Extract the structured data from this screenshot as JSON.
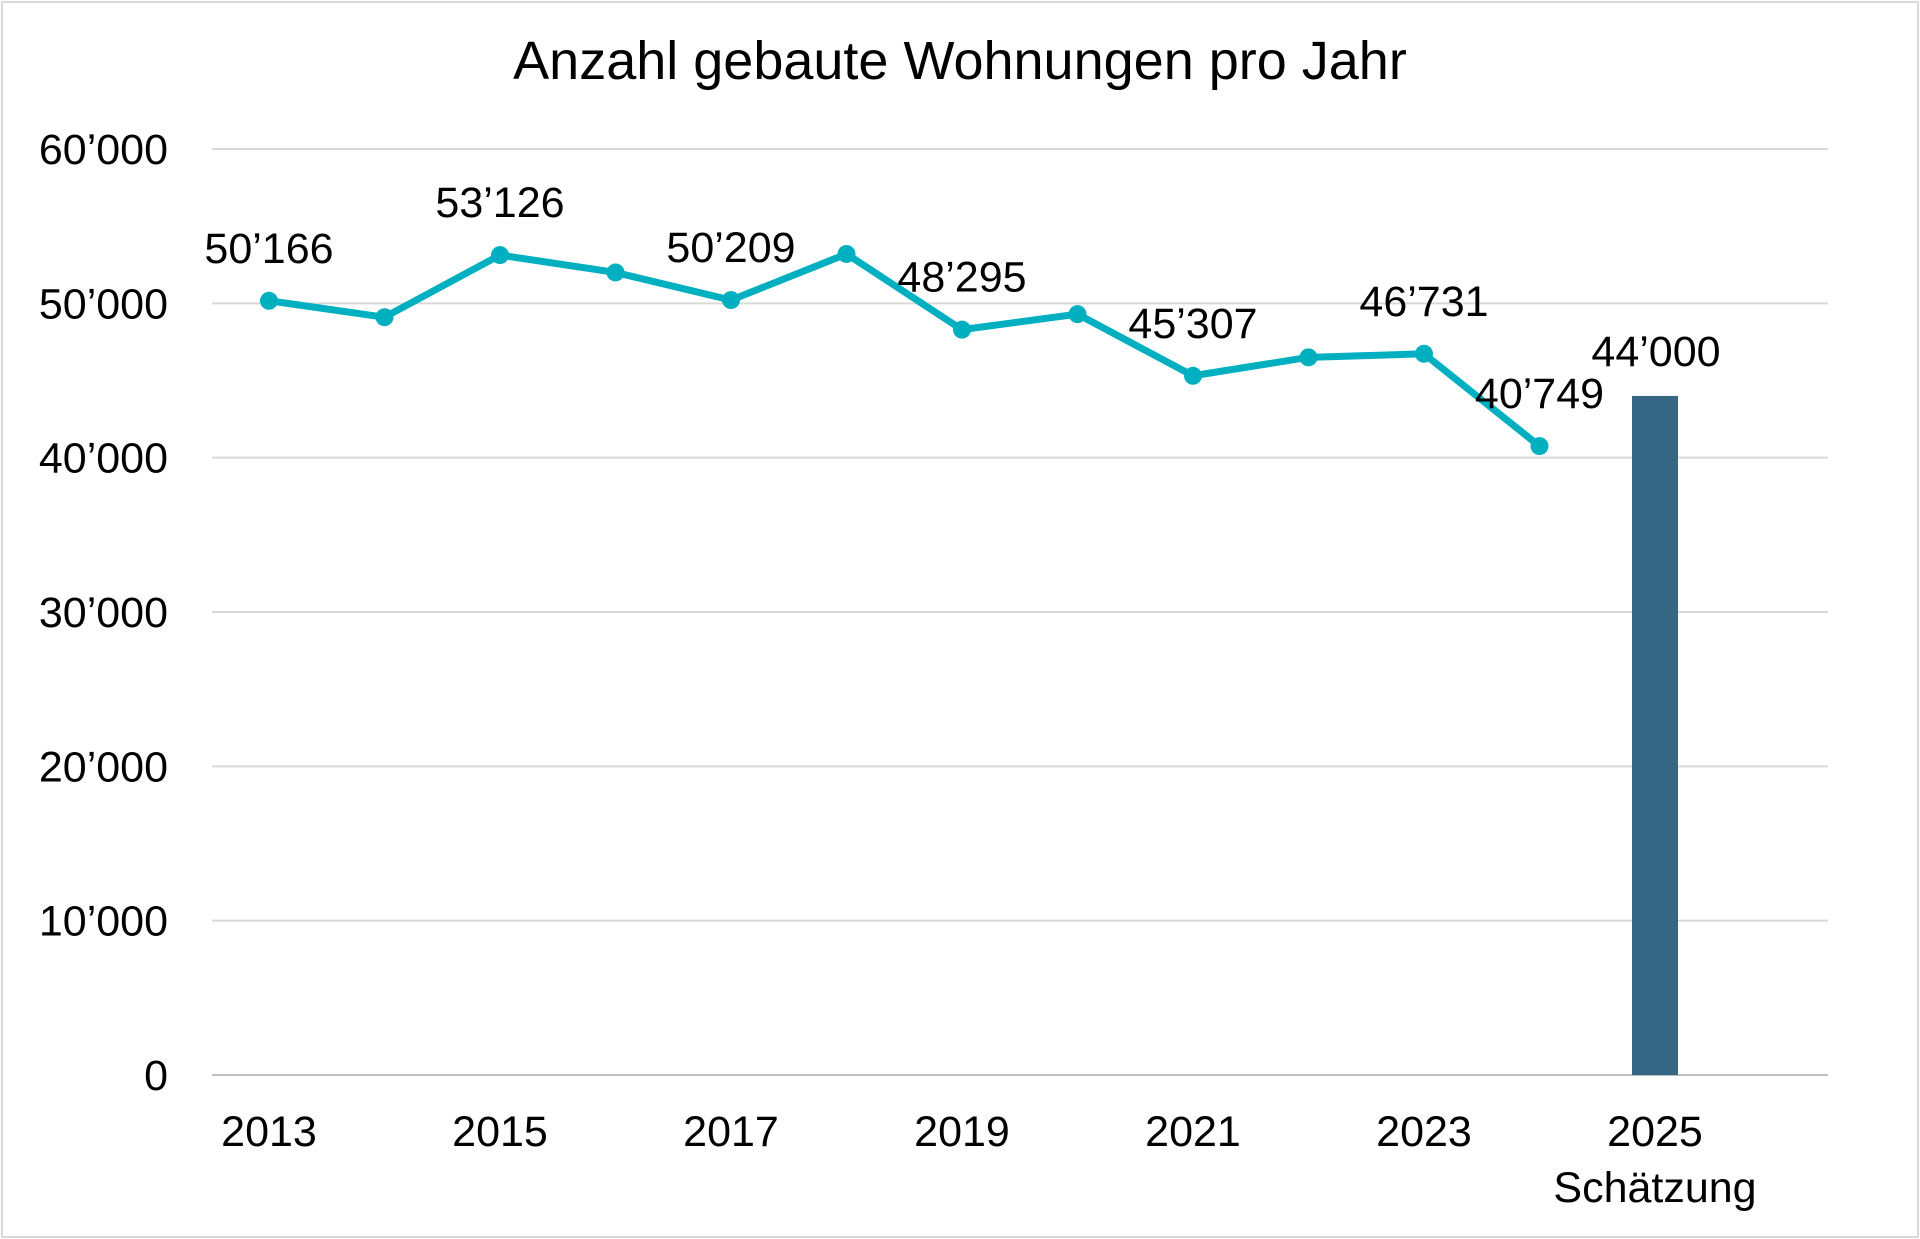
{
  "chart_data": {
    "type": "line",
    "title": "Anzahl gebaute Wohnungen pro Jahr",
    "xlabel": "",
    "ylabel": "",
    "ylim": [
      0,
      60000
    ],
    "yticks": [
      "0",
      "10’000",
      "20’000",
      "30’000",
      "40’000",
      "50’000",
      "60’000"
    ],
    "ytick_values": [
      0,
      10000,
      20000,
      30000,
      40000,
      50000,
      60000
    ],
    "grid": true,
    "x": [
      2013,
      2014,
      2015,
      2016,
      2017,
      2018,
      2019,
      2020,
      2021,
      2022,
      2023,
      2024
    ],
    "xtick_labels": [
      "2013",
      "2015",
      "2017",
      "2019",
      "2021",
      "2023",
      "2025"
    ],
    "xtick_years": [
      2013,
      2015,
      2017,
      2019,
      2021,
      2023,
      2025
    ],
    "xtick_sublabel": "Schätzung",
    "series": [
      {
        "name": "Gebaute Wohnungen",
        "color": "#00b0c0",
        "values": [
          50166,
          49100,
          53126,
          52000,
          50209,
          53200,
          48295,
          49300,
          45307,
          46500,
          46731,
          40749
        ],
        "data_labels": {
          "2013": "50’166",
          "2015": "53’126",
          "2017": "50’209",
          "2019": "48’295",
          "2021": "45’307",
          "2023": "46’731",
          "2024": "40’749"
        }
      },
      {
        "name": "Schätzung",
        "type": "bar",
        "color": "#356684",
        "x": [
          2025
        ],
        "values": [
          44000
        ],
        "data_labels": {
          "2025": "44’000"
        }
      }
    ]
  }
}
